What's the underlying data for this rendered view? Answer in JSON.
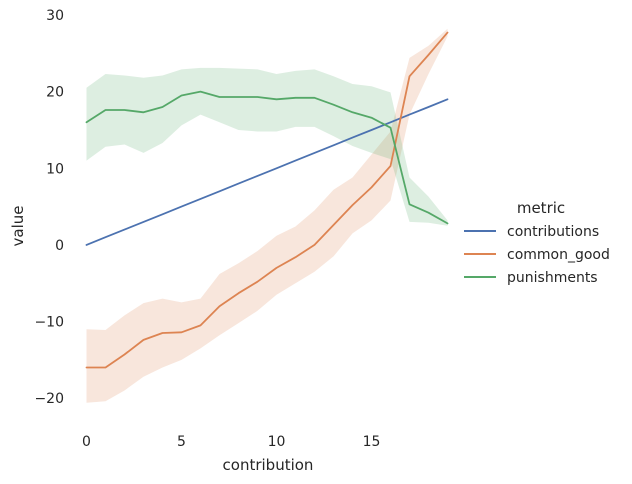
{
  "chart_data": {
    "type": "line",
    "xlabel": "contribution",
    "ylabel": "value",
    "xlim": [
      -0.5,
      19.5
    ],
    "ylim": [
      -23.5,
      30
    ],
    "x_ticks": [
      "0",
      "5",
      "10",
      "15"
    ],
    "x_tick_values": [
      0,
      5,
      10,
      15
    ],
    "y_ticks": [
      "−20",
      "−10",
      "0",
      "10",
      "20",
      "30"
    ],
    "y_tick_values": [
      -20,
      -10,
      0,
      10,
      20,
      30
    ],
    "grid": false,
    "legend_placement": "right",
    "legend_title": "metric",
    "x": [
      0,
      1,
      2,
      3,
      4,
      5,
      6,
      7,
      8,
      9,
      10,
      11,
      12,
      13,
      14,
      15,
      16,
      17,
      18,
      19
    ],
    "series": [
      {
        "name": "contributions",
        "color": "#4c72b0",
        "values": [
          0,
          1,
          2,
          3,
          4,
          5,
          6,
          7,
          8,
          9,
          10,
          11,
          12,
          13,
          14,
          15,
          16,
          17,
          18,
          19
        ]
      },
      {
        "name": "common_good",
        "color": "#dd8452",
        "values": [
          -16,
          -16,
          -14.3,
          -12.4,
          -11.5,
          -11.4,
          -10.5,
          -8,
          -6.3,
          -4.8,
          -3,
          -1.6,
          0,
          2.6,
          5.2,
          7.5,
          10.3,
          22,
          24.8,
          27.7
        ],
        "ci_low": [
          -20.6,
          -20.4,
          -19,
          -17.2,
          -16,
          -15,
          -13.5,
          -11.8,
          -10.2,
          -8.6,
          -6.5,
          -5,
          -3.5,
          -1.5,
          1.5,
          3.2,
          5.8,
          17,
          22.3,
          27.2
        ],
        "ci_high": [
          -11,
          -11.1,
          -9.2,
          -7.6,
          -7,
          -7.5,
          -7,
          -3.8,
          -2.4,
          -0.8,
          1.2,
          2.4,
          4.5,
          7.2,
          8.8,
          11.8,
          14.8,
          24.4,
          26,
          28.2
        ]
      },
      {
        "name": "punishments",
        "color": "#55a868",
        "values": [
          16,
          17.6,
          17.6,
          17.3,
          18,
          19.5,
          20,
          19.3,
          19.3,
          19.3,
          19,
          19.2,
          19.2,
          18.3,
          17.3,
          16.6,
          15.3,
          5.3,
          4.2,
          2.8
        ],
        "ci_low": [
          11,
          12.8,
          13.1,
          12,
          13.3,
          15.6,
          17,
          16,
          15,
          14.8,
          14.8,
          15.4,
          15.4,
          14.2,
          12.9,
          12,
          11.2,
          3,
          2.9,
          2.5
        ],
        "ci_high": [
          20.5,
          22.3,
          22.1,
          21.8,
          22.1,
          22.9,
          23.1,
          23.1,
          23,
          22.9,
          22.3,
          22.7,
          22.9,
          22,
          21,
          20.7,
          19.9,
          8.8,
          6.3,
          3.2
        ]
      }
    ]
  }
}
